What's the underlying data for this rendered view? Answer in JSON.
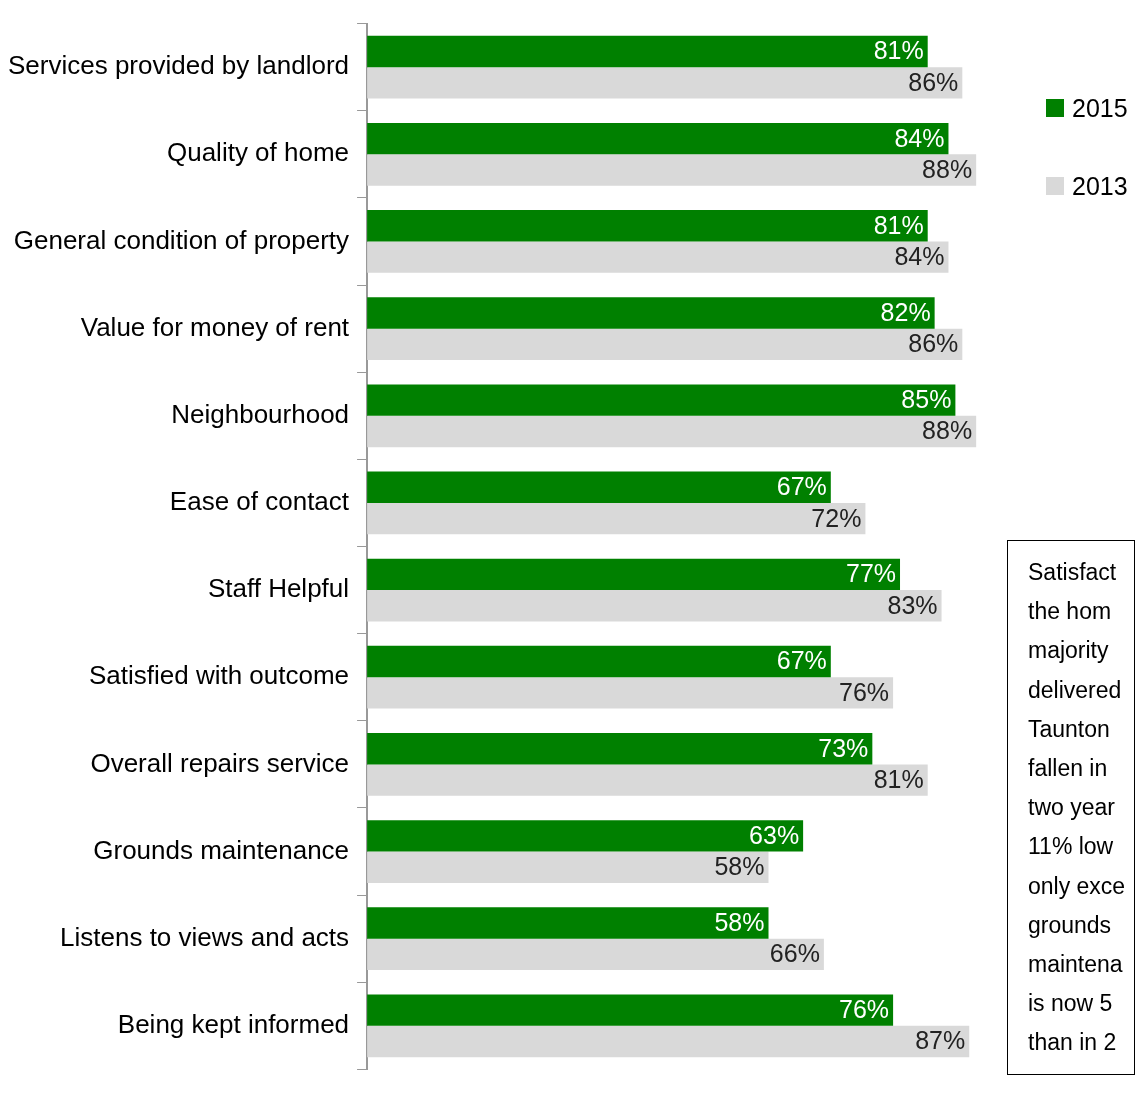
{
  "chart_data": {
    "type": "bar",
    "orientation": "horizontal",
    "categories": [
      "Services provided by landlord",
      "Quality of home",
      "General condition of property",
      "Value for money of rent",
      "Neighbourhood",
      "Ease of contact",
      "Staff Helpful",
      "Satisfied with outcome",
      "Overall repairs service",
      "Grounds maintenance",
      "Listens to views and acts",
      "Being kept informed"
    ],
    "series": [
      {
        "name": "2015",
        "color": "#008000",
        "values": [
          81,
          84,
          81,
          82,
          85,
          67,
          77,
          67,
          73,
          63,
          58,
          76
        ],
        "value_labels": [
          "81%",
          "84%",
          "81%",
          "82%",
          "85%",
          "67%",
          "77%",
          "67%",
          "73%",
          "63%",
          "58%",
          "76%"
        ]
      },
      {
        "name": "2013",
        "color": "#d9d9d9",
        "values": [
          86,
          88,
          84,
          86,
          88,
          72,
          83,
          76,
          81,
          58,
          66,
          87
        ],
        "value_labels": [
          "86%",
          "88%",
          "84%",
          "86%",
          "88%",
          "72%",
          "83%",
          "76%",
          "81%",
          "58%",
          "66%",
          "87%"
        ]
      }
    ],
    "legend": "right",
    "annotations": [
      "Satisfact\nthe hom\nmajority\ndelivered\nTaunton\nfallen in\ntwo year\n11% low\nonly exce\ngrounds\nmaintena\nis now 5\nthan in 2"
    ]
  }
}
